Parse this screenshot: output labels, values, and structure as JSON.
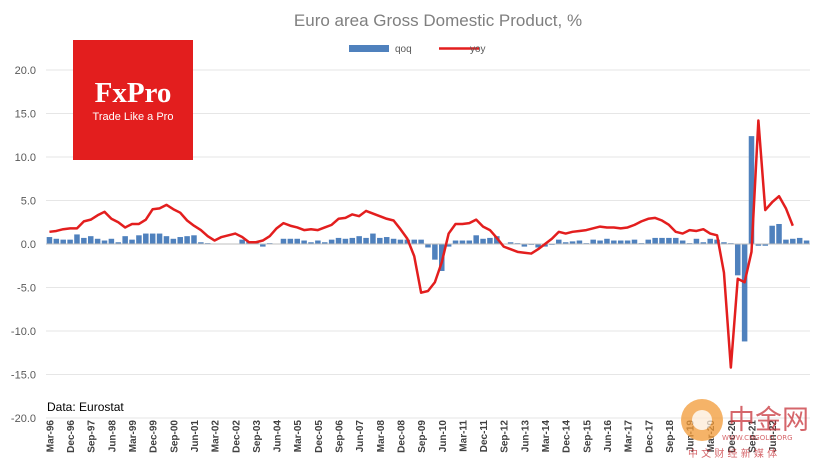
{
  "chart_data": {
    "type": "bar",
    "title": "Euro area Gross Domestic Product, %",
    "xlabel": "",
    "ylabel": "",
    "ylim": [
      -20,
      20
    ],
    "y_ticks": [
      "20.0",
      "15.0",
      "10.0",
      "5.0",
      "0.0",
      "-5.0",
      "-10.0",
      "-15.0",
      "-20.0"
    ],
    "grid": true,
    "legend_position": "top",
    "colors": {
      "qoq": "#4f81bd",
      "yoy": "#e31e1e",
      "grid": "#e6e6e6"
    },
    "x_tick_labels": [
      "Mar-96",
      "Dec-96",
      "Sep-97",
      "Jun-98",
      "Mar-99",
      "Dec-99",
      "Sep-00",
      "Jun-01",
      "Mar-02",
      "Dec-02",
      "Sep-03",
      "Jun-04",
      "Mar-05",
      "Dec-05",
      "Sep-06",
      "Jun-07",
      "Mar-08",
      "Dec-08",
      "Sep-09",
      "Jun-10",
      "Mar-11",
      "Dec-11",
      "Sep-12",
      "Jun-13",
      "Mar-14",
      "Dec-14",
      "Sep-15",
      "Jun-16",
      "Mar-17",
      "Dec-17",
      "Sep-18",
      "Jun-19",
      "Mar-20",
      "Dec-20",
      "Sep-21",
      "Jun-22"
    ],
    "series": [
      {
        "name": "qoq",
        "kind": "bar",
        "values": [
          0.8,
          0.6,
          0.5,
          0.5,
          1.1,
          0.7,
          0.9,
          0.6,
          0.4,
          0.6,
          0.2,
          0.9,
          0.5,
          1.0,
          1.2,
          1.2,
          1.2,
          0.9,
          0.6,
          0.8,
          0.9,
          1.0,
          0.2,
          0.1,
          0.0,
          0.0,
          0.0,
          0.0,
          0.5,
          0.3,
          0.3,
          -0.3,
          0.1,
          0.0,
          0.6,
          0.6,
          0.6,
          0.4,
          0.2,
          0.4,
          0.2,
          0.5,
          0.7,
          0.6,
          0.7,
          0.9,
          0.7,
          1.2,
          0.7,
          0.8,
          0.6,
          0.5,
          0.5,
          0.5,
          0.5,
          -0.4,
          -1.8,
          -3.1,
          -0.3,
          0.4,
          0.4,
          0.4,
          1.0,
          0.6,
          0.7,
          0.9,
          0.0,
          0.2,
          0.1,
          -0.3,
          -0.1,
          -0.4,
          -0.3,
          -0.1,
          0.5,
          0.2,
          0.3,
          0.4,
          0.1,
          0.5,
          0.4,
          0.6,
          0.4,
          0.4,
          0.4,
          0.5,
          0.1,
          0.5,
          0.7,
          0.7,
          0.7,
          0.7,
          0.4,
          0.1,
          0.6,
          0.2,
          0.6,
          0.5,
          0.2,
          0.1,
          -3.6,
          -11.2,
          12.4,
          -0.2,
          -0.2,
          2.1,
          2.3,
          0.5,
          0.6,
          0.7,
          0.4
        ]
      },
      {
        "name": "yoy",
        "kind": "line",
        "values": [
          1.4,
          1.5,
          1.7,
          1.8,
          1.8,
          2.6,
          2.8,
          3.3,
          3.7,
          2.9,
          2.5,
          1.9,
          2.3,
          2.3,
          2.8,
          4.0,
          4.1,
          4.5,
          4.0,
          3.6,
          2.7,
          2.1,
          1.6,
          0.9,
          0.4,
          0.8,
          1.0,
          1.2,
          0.8,
          0.2,
          0.2,
          0.4,
          0.9,
          1.8,
          2.4,
          2.1,
          1.9,
          1.6,
          1.7,
          1.6,
          1.9,
          2.2,
          2.9,
          3.0,
          3.4,
          3.2,
          3.8,
          3.5,
          3.2,
          2.9,
          2.7,
          1.7,
          0.6,
          -1.4,
          -5.6,
          -5.4,
          -4.4,
          -2.1,
          1.2,
          2.3,
          2.3,
          2.4,
          2.8,
          2.0,
          1.6,
          0.7,
          -0.3,
          -0.6,
          -0.9,
          -1.0,
          -1.1,
          -0.6,
          0.0,
          0.6,
          1.4,
          1.2,
          1.4,
          1.5,
          1.6,
          1.8,
          2.0,
          1.9,
          1.9,
          1.8,
          1.9,
          2.2,
          2.6,
          2.9,
          3.0,
          2.7,
          2.2,
          1.4,
          1.2,
          1.6,
          1.5,
          1.7,
          1.2,
          1.0,
          -3.3,
          -14.2,
          -4.0,
          -4.4,
          -0.9,
          14.2,
          3.9,
          4.8,
          5.5,
          4.1,
          2.1
        ]
      }
    ]
  },
  "logo": {
    "brand": "FxPro",
    "tagline": "Trade Like a Pro",
    "color": "#e31e1e"
  },
  "source_note": "Data: Eurostat",
  "watermark": {
    "title": "中金网",
    "url": "WWW.CNGOLD.ORG",
    "subtitle": "中 文 财 经 新 媒 体"
  }
}
